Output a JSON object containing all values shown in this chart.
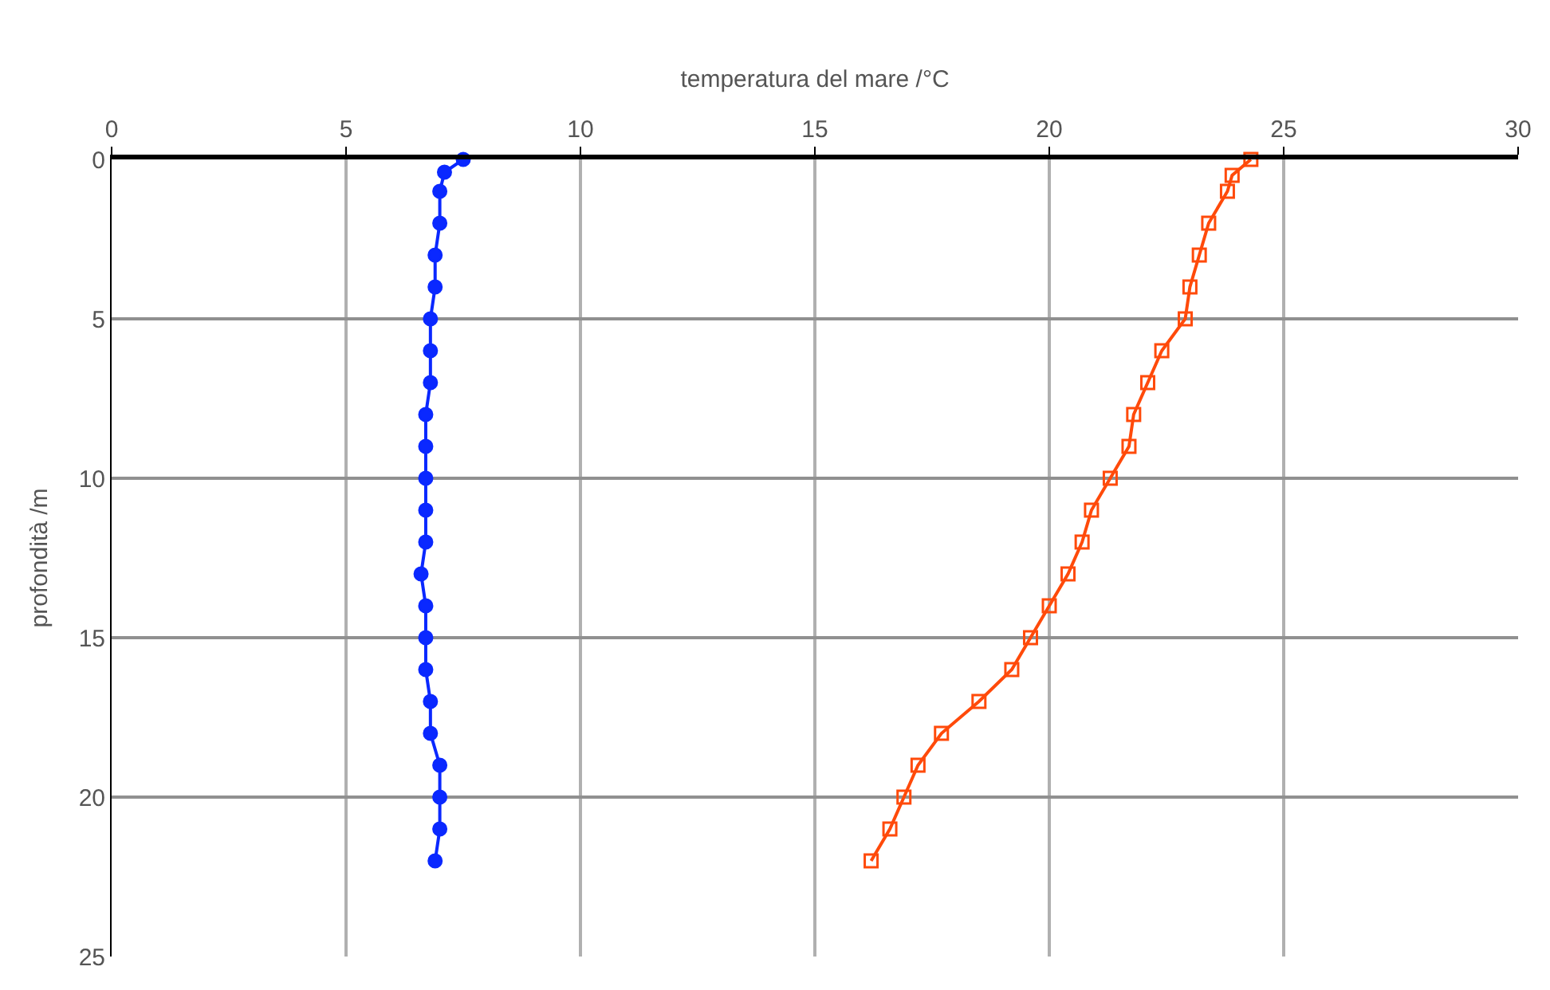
{
  "chart_data": {
    "type": "line",
    "xlabel": "temperatura del mare /°C",
    "ylabel": "profondità /m",
    "xlim": [
      0,
      30
    ],
    "xticks": [
      0,
      5,
      10,
      15,
      20,
      25,
      30
    ],
    "ylim": [
      25,
      0
    ],
    "yticks": [
      0,
      5,
      10,
      15,
      20,
      25
    ],
    "grid": true,
    "line_style": "solid",
    "series": [
      {
        "color": "#0a28ff",
        "marker": "circle",
        "x": [
          7.5,
          7.1,
          7.0,
          7.0,
          6.9,
          6.9,
          6.8,
          6.8,
          6.8,
          6.7,
          6.7,
          6.7,
          6.7,
          6.7,
          6.6,
          6.7,
          6.7,
          6.7,
          6.8,
          6.8,
          7.0,
          7.0,
          7.0,
          6.9
        ],
        "values": [
          0,
          0.4,
          1,
          2,
          3,
          4,
          5,
          6,
          7,
          8,
          9,
          10,
          11,
          12,
          13,
          14,
          15,
          16,
          17,
          18,
          19,
          20,
          21,
          22
        ]
      },
      {
        "color": "#ff4a0a",
        "marker": "square",
        "x": [
          24.3,
          23.9,
          23.8,
          23.4,
          23.2,
          23.0,
          22.9,
          22.4,
          22.1,
          21.8,
          21.7,
          21.3,
          20.9,
          20.7,
          20.4,
          20.0,
          19.6,
          19.2,
          18.5,
          17.7,
          17.2,
          16.9,
          16.6,
          16.2
        ],
        "values": [
          0,
          0.5,
          1,
          2,
          3,
          4,
          5,
          6,
          7,
          8,
          9,
          10,
          11,
          12,
          13,
          14,
          15,
          16,
          17,
          18,
          19,
          20,
          21,
          22
        ]
      }
    ]
  }
}
